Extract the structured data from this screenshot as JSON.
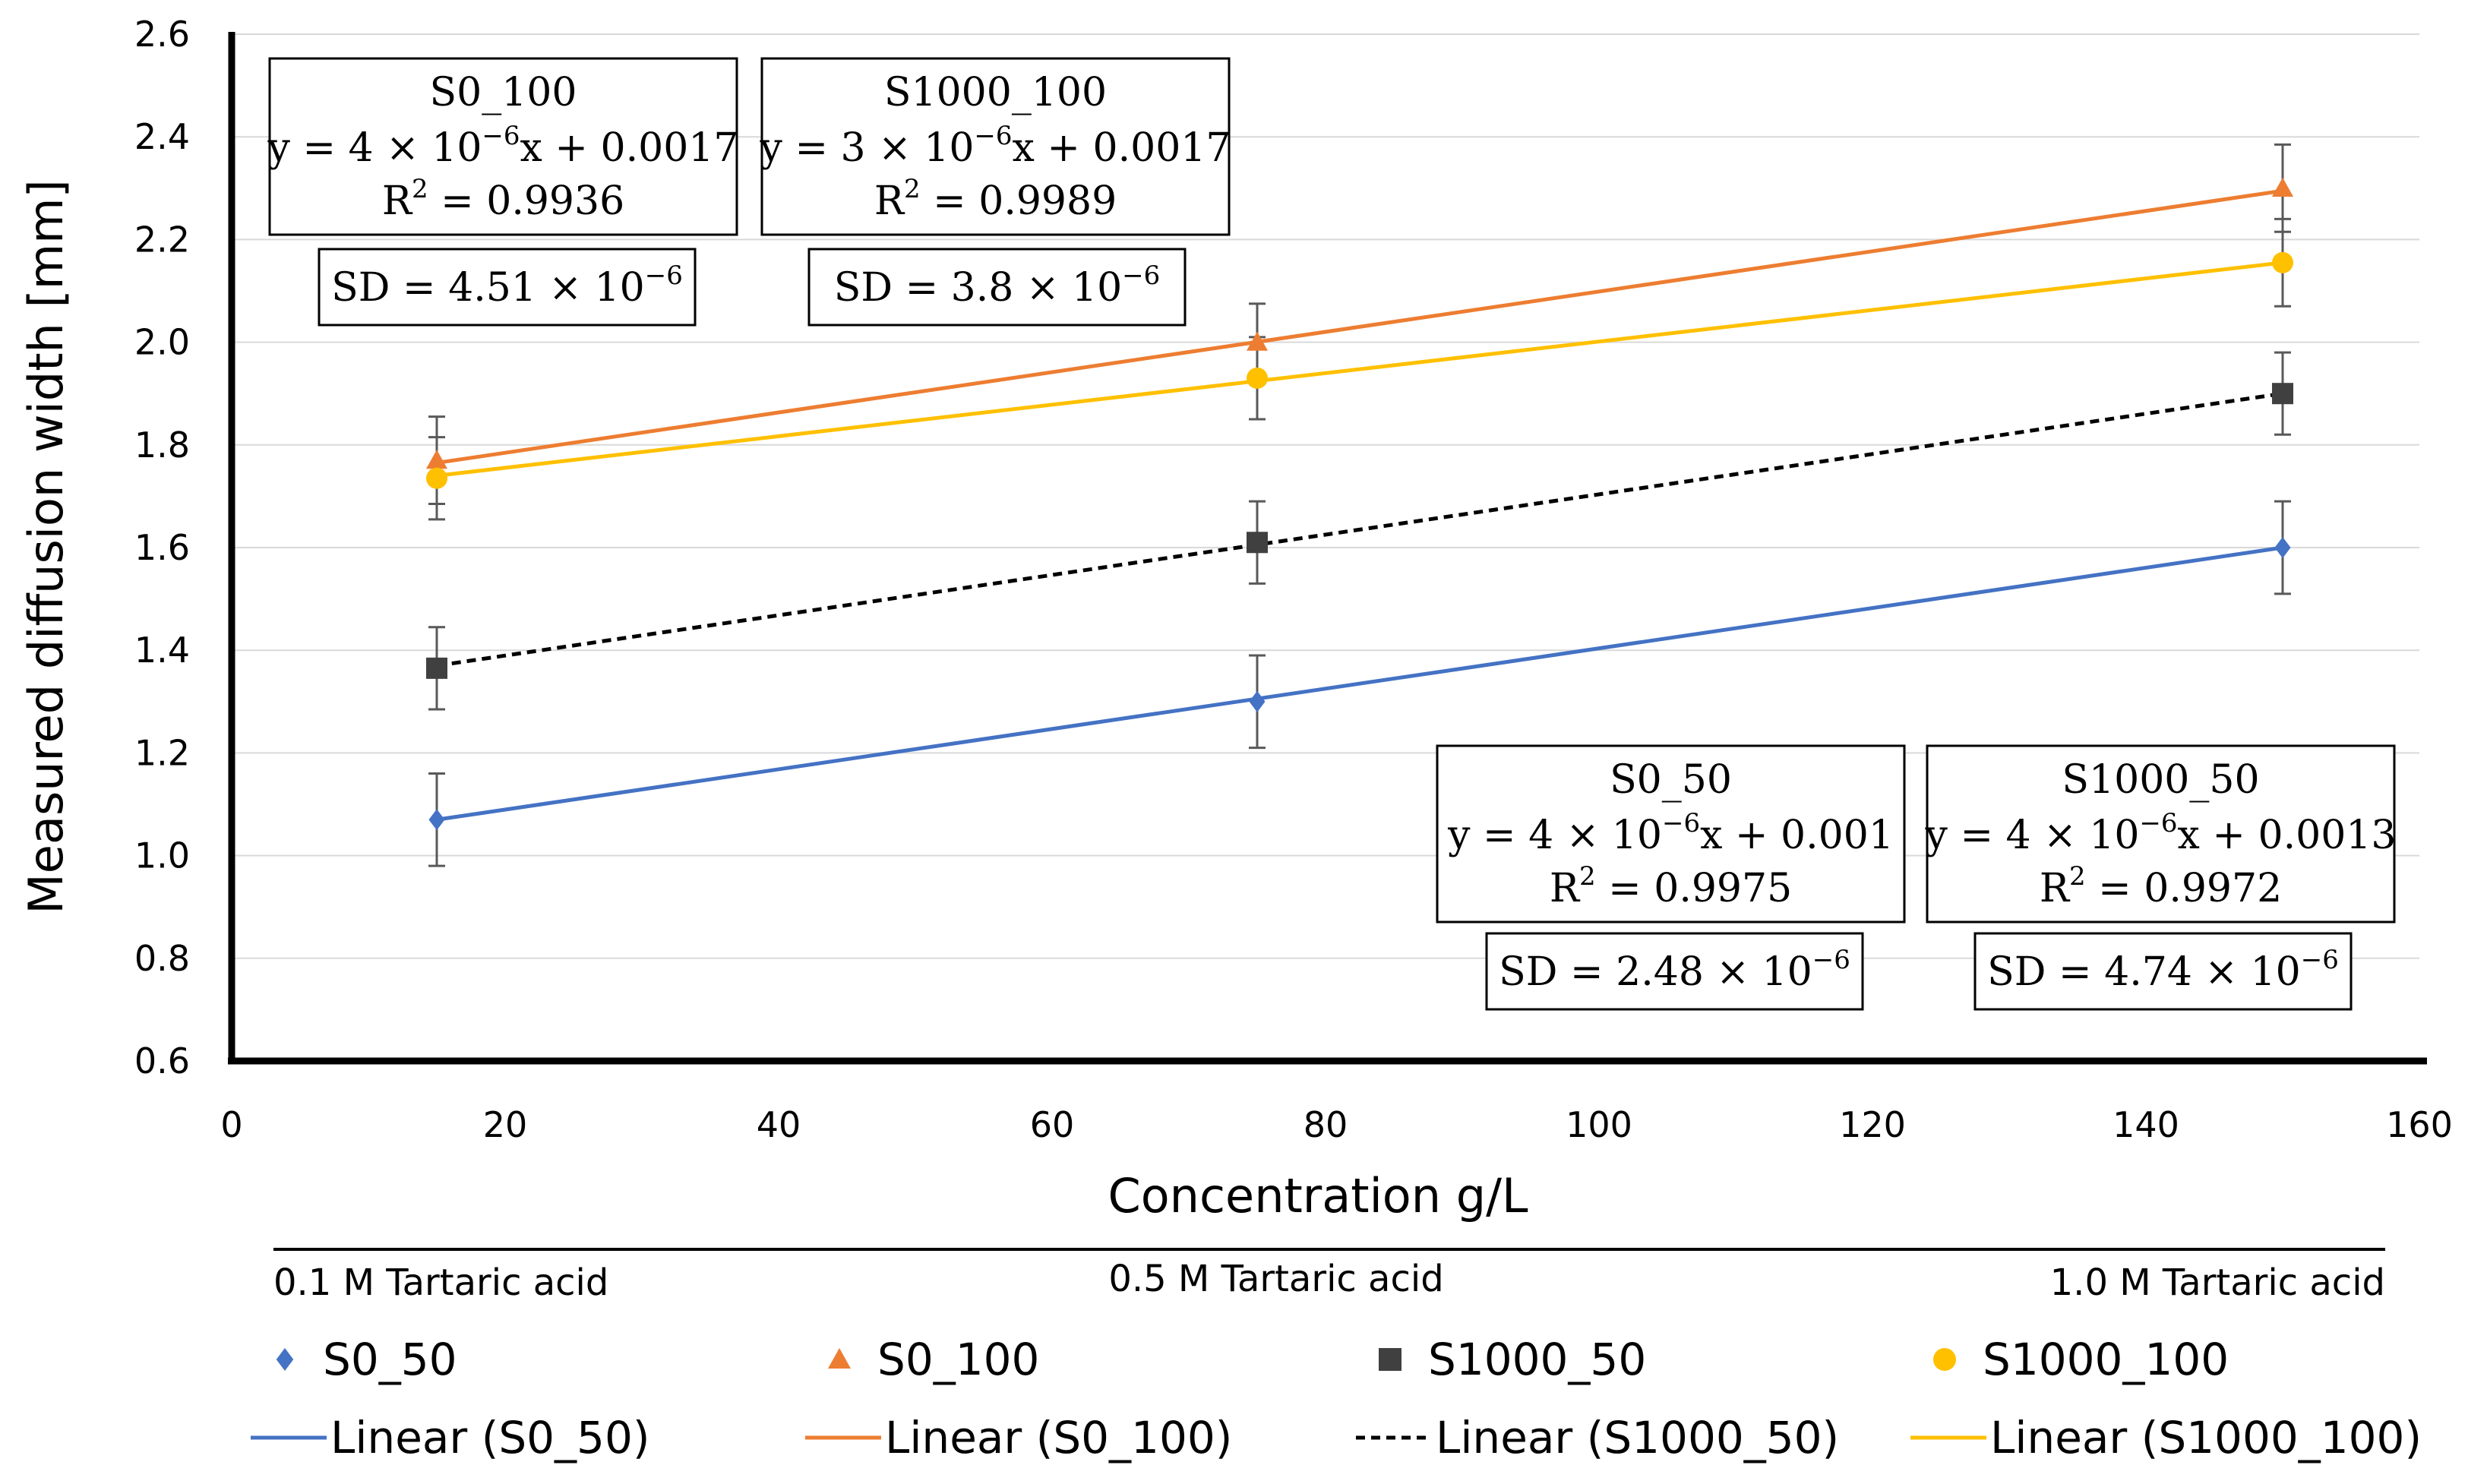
{
  "chart_data": {
    "type": "scatter",
    "xlabel": "Concentration g/L",
    "ylabel": "Measured diffusion width [mm]",
    "xlim": [
      0,
      160
    ],
    "ylim": [
      0.6,
      2.6
    ],
    "xticks": [
      0,
      20,
      40,
      60,
      80,
      100,
      120,
      140,
      160
    ],
    "yticks": [
      0.6,
      0.8,
      1.0,
      1.2,
      1.4,
      1.6,
      1.8,
      2.0,
      2.2,
      2.4,
      2.6
    ],
    "xtick_labels": [
      "0",
      "20",
      "40",
      "60",
      "80",
      "100",
      "120",
      "140",
      "160"
    ],
    "ytick_labels": [
      "0.6",
      "0.8",
      "1.0",
      "1.2",
      "1.4",
      "1.6",
      "1.8",
      "2.0",
      "2.2",
      "2.4",
      "2.6"
    ],
    "grid": "horizontal",
    "series": [
      {
        "name": "S0_50",
        "marker": "diamond",
        "color": "#4472C4",
        "x": [
          15,
          75,
          150
        ],
        "y": [
          1.07,
          1.3,
          1.6
        ],
        "err": [
          0.09,
          0.09,
          0.09
        ],
        "trend": {
          "name": "Linear (S0_50)",
          "style": "solid",
          "y_start": 1.07,
          "y_end": 1.6
        }
      },
      {
        "name": "S0_100",
        "marker": "triangle",
        "color": "#ED7D31",
        "x": [
          15,
          75,
          150
        ],
        "y": [
          1.77,
          2.0,
          2.3
        ],
        "err": [
          0.085,
          0.075,
          0.085
        ],
        "trend": {
          "name": "Linear (S0_100)",
          "style": "solid",
          "y_start": 1.765,
          "y_end": 2.295
        }
      },
      {
        "name": "S1000_50",
        "marker": "square",
        "color": "#404040",
        "x": [
          15,
          75,
          150
        ],
        "y": [
          1.365,
          1.61,
          1.9
        ],
        "err": [
          0.08,
          0.08,
          0.08
        ],
        "trend": {
          "name": "Linear (S1000_50)",
          "style": "dashed",
          "y_start": 1.37,
          "y_end": 1.9
        }
      },
      {
        "name": "S1000_100",
        "marker": "circle",
        "color": "#FFC000",
        "x": [
          15,
          75,
          150
        ],
        "y": [
          1.735,
          1.93,
          2.155
        ],
        "err": [
          0.08,
          0.08,
          0.085
        ],
        "trend": {
          "name": "Linear (S1000_100)",
          "style": "solid",
          "y_start": 1.74,
          "y_end": 2.155
        }
      }
    ],
    "annotations": [
      {
        "id": "s0_100",
        "title": "S0_100",
        "coef": "4",
        "intercept": "0.0017",
        "r2": "0.9936",
        "sd_coef": "4.51"
      },
      {
        "id": "s1000_100",
        "title": "S1000_100",
        "coef": "3",
        "intercept": "0.0017",
        "r2": "0.9989",
        "sd_coef": "3.8"
      },
      {
        "id": "s0_50",
        "title": "S0_50",
        "coef": "4",
        "intercept": "0.001",
        "r2": "0.9975",
        "sd_coef": "2.48"
      },
      {
        "id": "s1000_50",
        "title": "S1000_50",
        "coef": "4",
        "intercept": "0.0013",
        "r2": "0.9972",
        "sd_coef": "4.74"
      }
    ],
    "acid_labels": [
      "0.1 M Tartaric acid",
      "0.5 M Tartaric acid",
      "1.0 M Tartaric acid"
    ],
    "legend_position": "bottom"
  }
}
